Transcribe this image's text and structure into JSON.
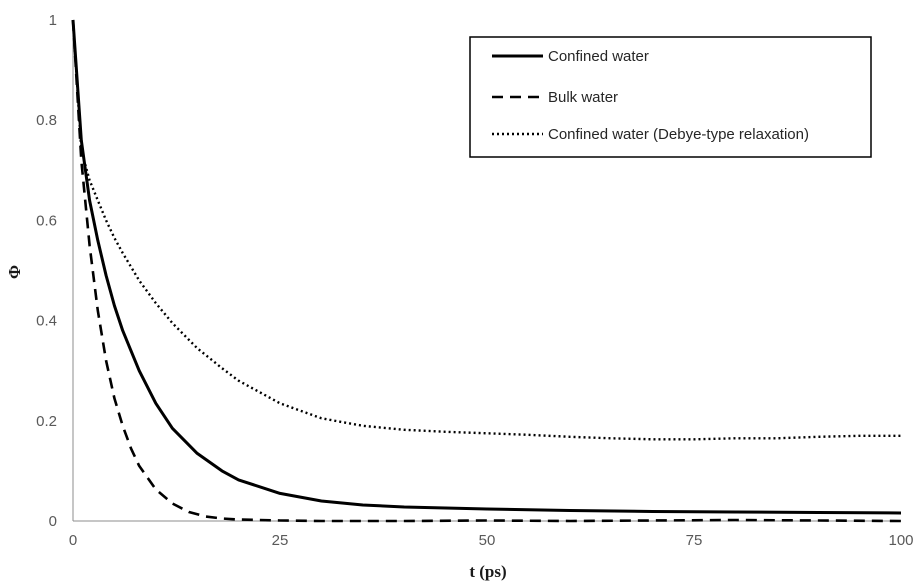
{
  "chart_data": {
    "type": "line",
    "xlabel": "t (ps)",
    "ylabel": "Φ",
    "xlim": [
      0,
      100
    ],
    "ylim": [
      0,
      1
    ],
    "x_ticks": [
      "0",
      "25",
      "50",
      "75",
      "100"
    ],
    "y_ticks": [
      "0",
      "0.2",
      "0.4",
      "0.6",
      "0.8",
      "1"
    ],
    "grid": false,
    "legend_position": "top-right",
    "series": [
      {
        "name": "Confined water",
        "style": "solid",
        "color": "#000000",
        "x": [
          0,
          1,
          2,
          3,
          4,
          5,
          6,
          8,
          10,
          12,
          15,
          18,
          20,
          25,
          30,
          35,
          40,
          50,
          60,
          70,
          80,
          90,
          100
        ],
        "y": [
          1.0,
          0.76,
          0.64,
          0.56,
          0.49,
          0.43,
          0.38,
          0.3,
          0.235,
          0.185,
          0.135,
          0.1,
          0.082,
          0.055,
          0.04,
          0.032,
          0.028,
          0.024,
          0.021,
          0.019,
          0.018,
          0.017,
          0.016
        ]
      },
      {
        "name": "Bulk water",
        "style": "dashed",
        "color": "#000000",
        "x": [
          0,
          1,
          2,
          3,
          4,
          5,
          6,
          7,
          8,
          10,
          12,
          14,
          16,
          18,
          20,
          25,
          30,
          40,
          50,
          60,
          70,
          80,
          90,
          100
        ],
        "y": [
          1.0,
          0.72,
          0.55,
          0.42,
          0.32,
          0.245,
          0.19,
          0.145,
          0.11,
          0.063,
          0.035,
          0.018,
          0.009,
          0.005,
          0.003,
          0.001,
          0.0,
          0.0,
          0.001,
          0.0,
          0.001,
          0.002,
          0.001,
          0.0
        ]
      },
      {
        "name": "Confined water (Debye-type relaxation)",
        "style": "dotted",
        "color": "#000000",
        "x": [
          0,
          1,
          2,
          3,
          4,
          5,
          6,
          8,
          10,
          12,
          15,
          18,
          20,
          25,
          30,
          35,
          40,
          45,
          50,
          55,
          60,
          65,
          70,
          75,
          80,
          85,
          90,
          95,
          100
        ],
        "y": [
          1.0,
          0.74,
          0.68,
          0.64,
          0.6,
          0.565,
          0.535,
          0.48,
          0.435,
          0.395,
          0.345,
          0.305,
          0.28,
          0.235,
          0.205,
          0.19,
          0.182,
          0.178,
          0.175,
          0.172,
          0.168,
          0.165,
          0.163,
          0.163,
          0.165,
          0.165,
          0.168,
          0.17,
          0.17
        ]
      }
    ]
  }
}
